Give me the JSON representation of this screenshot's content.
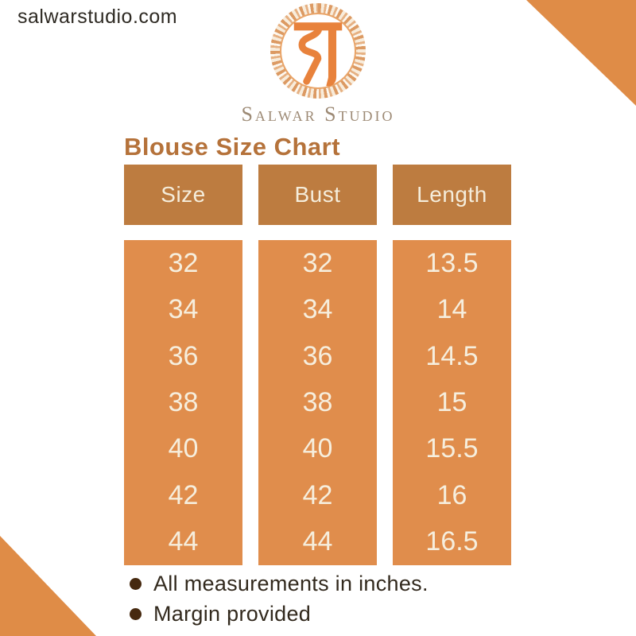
{
  "brand": {
    "website": "salwarstudio.com",
    "name": "Salwar Studio",
    "logo_monogram": "devanagari-sa (स)"
  },
  "title": "Blouse Size Chart",
  "chart_data": {
    "type": "table",
    "title": "Blouse Size Chart",
    "columns": [
      "Size",
      "Bust",
      "Length"
    ],
    "rows": [
      [
        "32",
        "32",
        "13.5"
      ],
      [
        "34",
        "34",
        "14"
      ],
      [
        "36",
        "36",
        "14.5"
      ],
      [
        "38",
        "38",
        "15"
      ],
      [
        "40",
        "40",
        "15.5"
      ],
      [
        "42",
        "42",
        "16"
      ],
      [
        "44",
        "44",
        "16.5"
      ]
    ],
    "units": "inches"
  },
  "notes": [
    "All measurements in inches.",
    "Margin provided"
  ],
  "colors": {
    "header_brown": "#bd7c40",
    "body_orange": "#e08d4c",
    "corner_triangle": "#df8c47",
    "title_brown": "#b5723a",
    "cell_text_cream": "#f6eedd",
    "note_text": "#32291d",
    "bullet_brown": "#46290f",
    "brand_name_taupe": "#9d8a75",
    "logo_glyph_orange": "#e8823c"
  }
}
